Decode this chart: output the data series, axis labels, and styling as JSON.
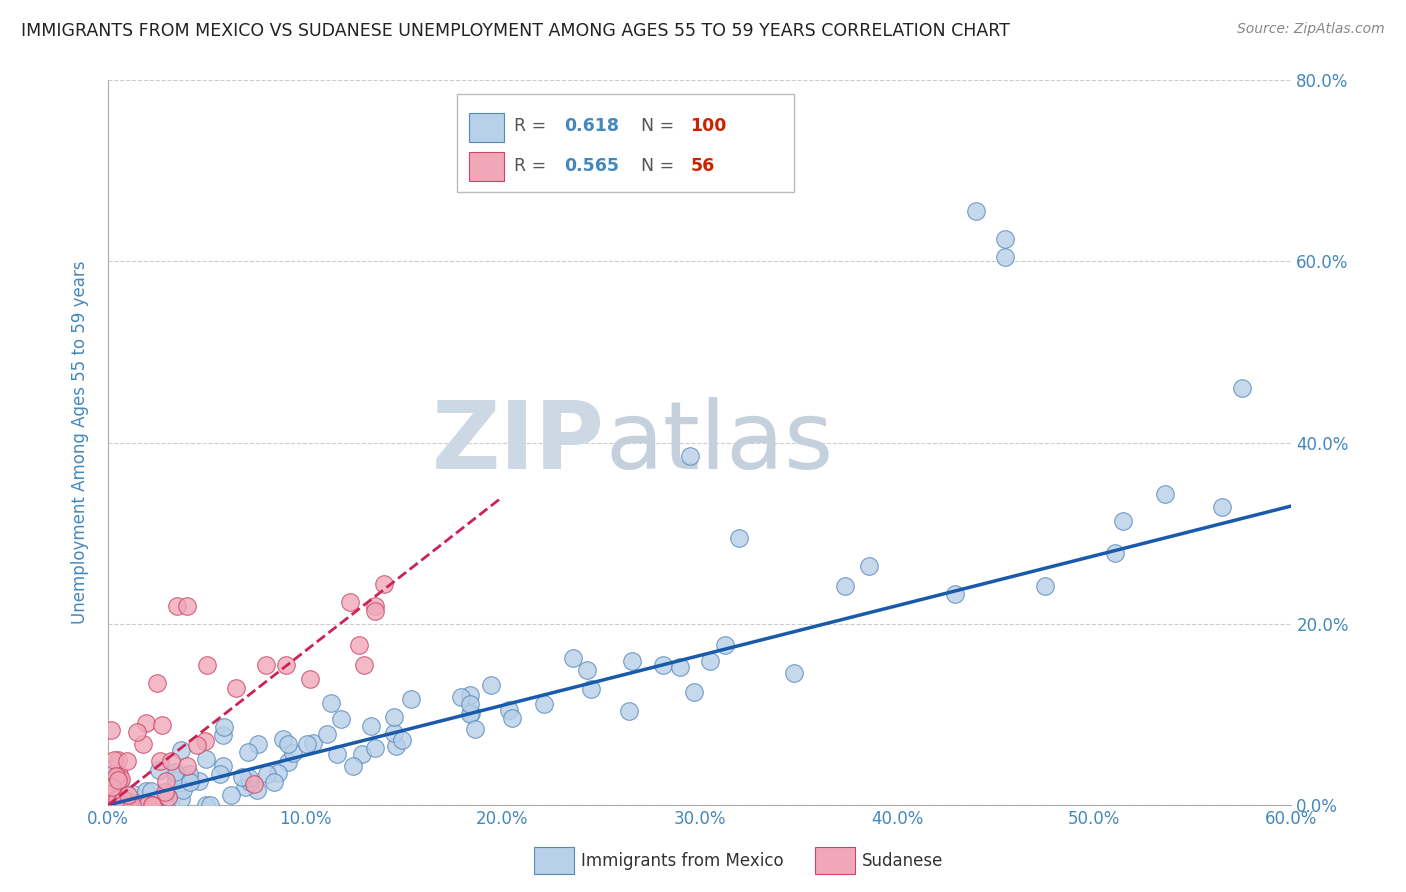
{
  "title": "IMMIGRANTS FROM MEXICO VS SUDANESE UNEMPLOYMENT AMONG AGES 55 TO 59 YEARS CORRELATION CHART",
  "source": "Source: ZipAtlas.com",
  "xlim": [
    0.0,
    0.6
  ],
  "ylim": [
    0.0,
    0.8
  ],
  "ylabel": "Unemployment Among Ages 55 to 59 years",
  "mexico_color": "#b8d0e8",
  "mexico_edge_color": "#5588bb",
  "mexico_line_color": "#1a5aaa",
  "sudanese_color": "#f0a8b8",
  "sudanese_edge_color": "#cc4466",
  "sudanese_line_color": "#cc2255",
  "watermark_zip_color": "#d0dce8",
  "watermark_atlas_color": "#c8d4e0",
  "background_color": "#ffffff",
  "grid_color": "#cccccc",
  "axis_label_color": "#4488bb",
  "title_color": "#222222",
  "R_mexico": 0.618,
  "N_mexico": 100,
  "R_sudanese": 0.565,
  "N_sudanese": 56,
  "mexico_line_x": [
    0.0,
    0.6
  ],
  "mexico_line_y": [
    0.0,
    0.33
  ],
  "sudanese_line_x": [
    0.0,
    0.2
  ],
  "sudanese_line_y": [
    0.0,
    0.34
  ]
}
